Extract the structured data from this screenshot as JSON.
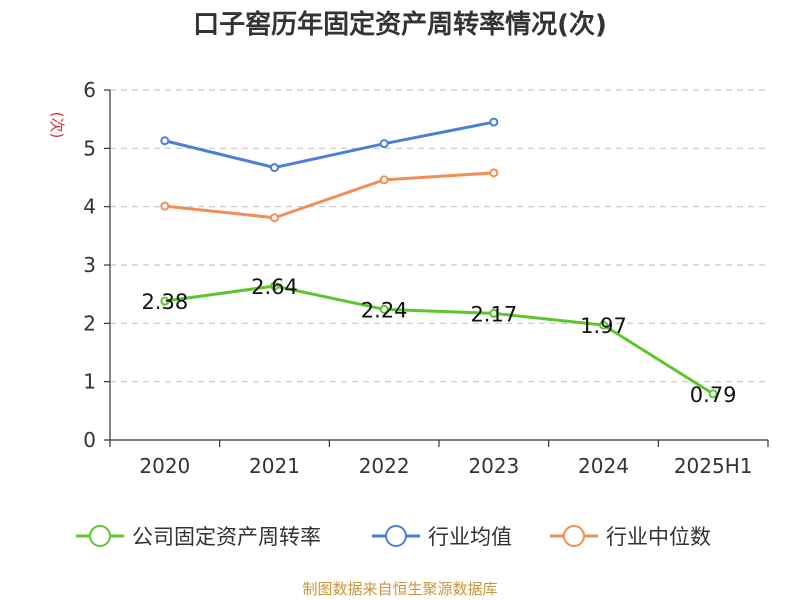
{
  "title": "口子窖历年固定资产周转率情况(次)",
  "source": "制图数据来自恒生聚源数据库",
  "chart_data": {
    "type": "line",
    "title": "口子窖历年固定资产周转率情况(次)",
    "ylabel": "(次)",
    "xlabel": "",
    "categories": [
      "2020",
      "2021",
      "2022",
      "2023",
      "2024",
      "2025H1"
    ],
    "ylim": [
      0,
      6
    ],
    "yticks": [
      0,
      1,
      2,
      3,
      4,
      5,
      6
    ],
    "grid": true,
    "legend_position": "bottom",
    "series": [
      {
        "name": "公司固定资产周转率",
        "color": "#5cc62b",
        "values": [
          2.38,
          2.64,
          2.24,
          2.17,
          1.97,
          0.79
        ],
        "labels": [
          "2.38",
          "2.64",
          "2.24",
          "2.17",
          "1.97",
          "0.79"
        ]
      },
      {
        "name": "行业均值",
        "color": "#4a7fd8",
        "values": [
          5.13,
          4.67,
          5.08,
          5.45,
          null,
          null
        ]
      },
      {
        "name": "行业中位数",
        "color": "#f28e55",
        "values": [
          4.01,
          3.81,
          4.46,
          4.58,
          null,
          null
        ]
      }
    ]
  }
}
